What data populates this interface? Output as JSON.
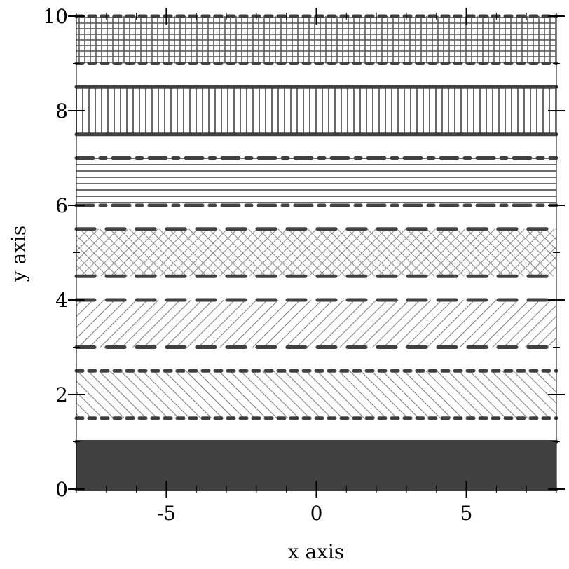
{
  "chart_data": {
    "type": "area",
    "title": "",
    "xlabel": "x axis",
    "ylabel": "y axis",
    "xlim": [
      -8,
      8
    ],
    "ylim": [
      0,
      10
    ],
    "x_ticks": [
      -5,
      0,
      5
    ],
    "x_tick_labels": [
      "-5",
      "0",
      "5"
    ],
    "y_ticks": [
      0,
      2,
      4,
      6,
      8,
      10
    ],
    "y_tick_labels": [
      "0",
      "2",
      "4",
      "6",
      "8",
      "10"
    ],
    "grid": false,
    "series": [
      {
        "y_lower": 0.0,
        "y_upper": 1.0,
        "x": [
          -8,
          8
        ],
        "fill": "solid",
        "edge_style": "solid",
        "color": "#404040"
      },
      {
        "y_lower": 1.5,
        "y_upper": 2.5,
        "x": [
          -8,
          8
        ],
        "fill": "backslash-hatch",
        "edge_style": "dotted",
        "color": "#404040"
      },
      {
        "y_lower": 3.0,
        "y_upper": 4.0,
        "x": [
          -8,
          8
        ],
        "fill": "slash-hatch",
        "edge_style": "dashed",
        "color": "#404040"
      },
      {
        "y_lower": 4.5,
        "y_upper": 5.5,
        "x": [
          -8,
          8
        ],
        "fill": "crosshatch",
        "edge_style": "dashed",
        "color": "#404040"
      },
      {
        "y_lower": 6.0,
        "y_upper": 7.0,
        "x": [
          -8,
          8
        ],
        "fill": "horizontal-hatch",
        "edge_style": "dashdot",
        "color": "#404040"
      },
      {
        "y_lower": 7.5,
        "y_upper": 8.5,
        "x": [
          -8,
          8
        ],
        "fill": "vertical-hatch",
        "edge_style": "solid",
        "color": "#404040"
      },
      {
        "y_lower": 9.0,
        "y_upper": 10.0,
        "x": [
          -8,
          8
        ],
        "fill": "grid-hatch",
        "edge_style": "dotted",
        "color": "#404040"
      }
    ]
  }
}
